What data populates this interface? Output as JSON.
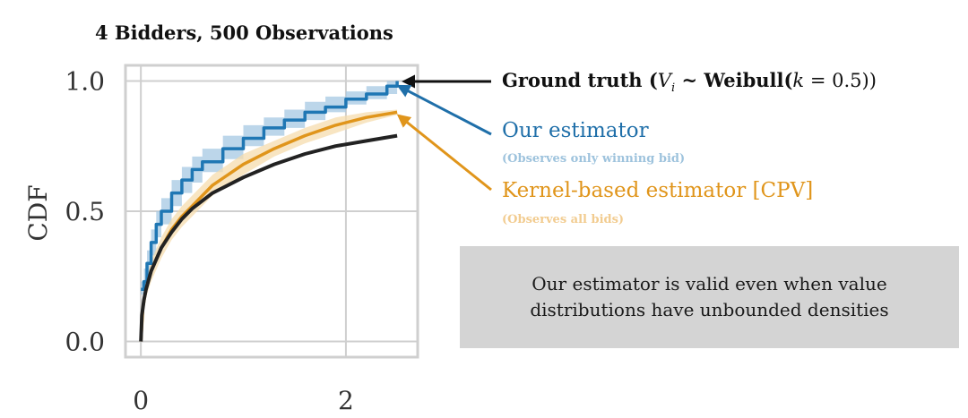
{
  "chart_data": {
    "type": "line",
    "title": "4 Bidders, 500 Observations",
    "xlabel": "",
    "ylabel": "CDF",
    "xlim": [
      -0.15,
      2.7
    ],
    "ylim": [
      -0.06,
      1.06
    ],
    "xticks": [
      0,
      2
    ],
    "xtick_labels": [
      "0",
      "2"
    ],
    "yticks": [
      0.0,
      0.5,
      1.0
    ],
    "ytick_labels": [
      "0.0",
      "0.5",
      "1.0"
    ],
    "grid": true,
    "series": [
      {
        "name": "Our estimator",
        "color": "#1f77b4",
        "band_color": "#a6c8e3",
        "style": "step",
        "x": [
          0.0,
          0.03,
          0.06,
          0.1,
          0.15,
          0.2,
          0.3,
          0.4,
          0.5,
          0.6,
          0.8,
          1.0,
          1.2,
          1.4,
          1.6,
          1.8,
          2.0,
          2.2,
          2.4,
          2.5
        ],
        "y": [
          0.2,
          0.23,
          0.3,
          0.38,
          0.45,
          0.5,
          0.57,
          0.62,
          0.66,
          0.69,
          0.74,
          0.78,
          0.82,
          0.85,
          0.88,
          0.9,
          0.93,
          0.95,
          0.98,
          1.0
        ],
        "lower": [
          0.18,
          0.2,
          0.26,
          0.33,
          0.4,
          0.45,
          0.52,
          0.57,
          0.61,
          0.65,
          0.7,
          0.75,
          0.79,
          0.82,
          0.85,
          0.88,
          0.91,
          0.93,
          0.95,
          0.97
        ],
        "upper": [
          0.23,
          0.28,
          0.35,
          0.43,
          0.5,
          0.55,
          0.62,
          0.67,
          0.71,
          0.74,
          0.79,
          0.83,
          0.86,
          0.89,
          0.92,
          0.94,
          0.96,
          0.98,
          1.0,
          1.0
        ]
      },
      {
        "name": "Kernel-based estimator [CPV]",
        "color": "#e0951b",
        "band_color": "#f6dcae",
        "style": "smooth",
        "x": [
          0.0,
          0.02,
          0.05,
          0.1,
          0.2,
          0.3,
          0.4,
          0.5,
          0.7,
          1.0,
          1.3,
          1.6,
          1.9,
          2.2,
          2.5
        ],
        "y": [
          0.0,
          0.13,
          0.2,
          0.27,
          0.36,
          0.43,
          0.48,
          0.52,
          0.6,
          0.68,
          0.74,
          0.79,
          0.83,
          0.86,
          0.88
        ],
        "lower": [
          0.0,
          0.1,
          0.17,
          0.23,
          0.32,
          0.39,
          0.44,
          0.48,
          0.56,
          0.64,
          0.71,
          0.76,
          0.8,
          0.84,
          0.87
        ],
        "upper": [
          0.0,
          0.16,
          0.23,
          0.31,
          0.4,
          0.47,
          0.52,
          0.56,
          0.64,
          0.72,
          0.77,
          0.82,
          0.86,
          0.88,
          0.89
        ]
      },
      {
        "name": "Ground truth",
        "color": "#222222",
        "style": "smooth",
        "x": [
          0.0,
          0.01,
          0.03,
          0.05,
          0.1,
          0.2,
          0.3,
          0.4,
          0.5,
          0.7,
          1.0,
          1.3,
          1.6,
          1.9,
          2.2,
          2.5
        ],
        "y": [
          0.0,
          0.1,
          0.16,
          0.2,
          0.27,
          0.36,
          0.42,
          0.47,
          0.51,
          0.57,
          0.63,
          0.68,
          0.72,
          0.75,
          0.77,
          0.79
        ]
      }
    ]
  },
  "annotations": {
    "ground_truth_prefix": "Ground truth (",
    "ground_truth_var": "V",
    "ground_truth_sub": "i",
    "ground_truth_mid": " ~ Weibull(",
    "ground_truth_k": "k",
    "ground_truth_eq": " = 0.5))",
    "ours": "Our estimator",
    "ours_sub": "(Observes only winning bid)",
    "kernel": "Kernel-based estimator [CPV]",
    "kernel_sub": "(Observes all bids)"
  },
  "note": {
    "line1": "Our estimator is valid even when value",
    "line2": "distributions have unbounded densities"
  },
  "colors": {
    "box": "#d4d4d4",
    "grid": "#cfcfcf",
    "blue": "#1f6fa9",
    "orange": "#e0951b"
  }
}
